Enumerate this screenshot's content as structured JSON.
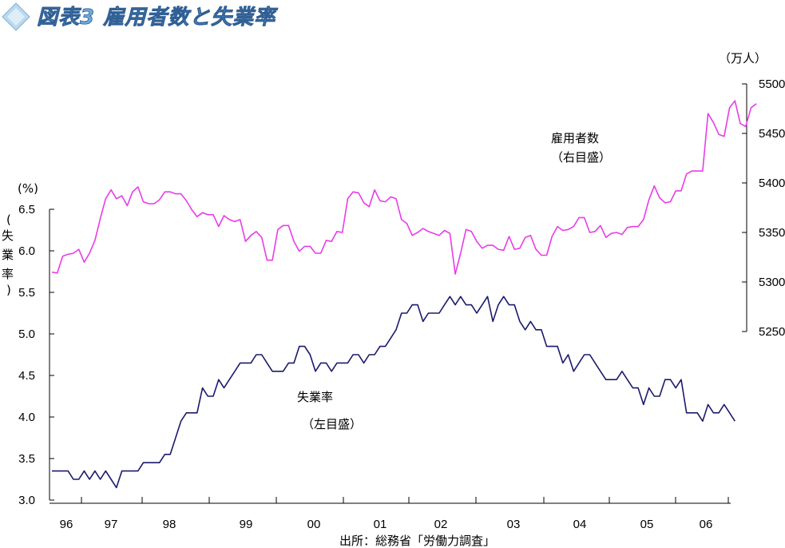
{
  "title": "図表3 雇用者数と失業率",
  "source": "出所：総務省「労働力調査」",
  "colors": {
    "unemployment": "#1a1a6e",
    "employees": "#e83ce8",
    "title_fill": "#6fa9d6"
  },
  "icon": "diamond-logo-icon",
  "chart_data": {
    "type": "line",
    "title": "図表3 雇用者数と失業率",
    "x_categories": [
      "96",
      "97",
      "98",
      "99",
      "00",
      "01",
      "02",
      "03",
      "04",
      "05",
      "06"
    ],
    "left_axis": {
      "unit": "(%)",
      "label": [
        "失",
        "業",
        "率"
      ],
      "ylim": [
        3.0,
        6.5
      ],
      "ticks": [
        "3.0",
        "3.5",
        "4.0",
        "4.5",
        "5.0",
        "5.5",
        "6.0",
        "6.5"
      ]
    },
    "right_axis": {
      "unit": "（万人）",
      "ylim": [
        5250,
        5500
      ],
      "ticks": [
        "5250",
        "5300",
        "5350",
        "5400",
        "5450",
        "5500"
      ]
    },
    "series": [
      {
        "name": "雇用者数",
        "axis": "right",
        "annotation": [
          "雇用者数",
          "（右目盛）"
        ],
        "x_start": 1996.0,
        "x_step": 0.0833,
        "values": [
          5310,
          5309,
          5326,
          5328,
          5329,
          5333,
          5320,
          5329,
          5342,
          5364,
          5384,
          5393,
          5384,
          5387,
          5377,
          5391,
          5396,
          5381,
          5379,
          5379,
          5383,
          5391,
          5391,
          5389,
          5389,
          5382,
          5373,
          5366,
          5370,
          5368,
          5368,
          5356,
          5367,
          5363,
          5361,
          5363,
          5341,
          5347,
          5351,
          5345,
          5322,
          5322,
          5353,
          5357,
          5357,
          5341,
          5331,
          5336,
          5336,
          5329,
          5329,
          5342,
          5341,
          5351,
          5350,
          5384,
          5391,
          5390,
          5380,
          5376,
          5393,
          5382,
          5381,
          5386,
          5384,
          5363,
          5359,
          5347,
          5350,
          5354,
          5351,
          5349,
          5347,
          5352,
          5349,
          5308,
          5329,
          5353,
          5351,
          5341,
          5334,
          5337,
          5337,
          5333,
          5332,
          5346,
          5333,
          5334,
          5345,
          5347,
          5333,
          5327,
          5327,
          5346,
          5356,
          5352,
          5353,
          5356,
          5365,
          5365,
          5350,
          5351,
          5357,
          5345,
          5349,
          5350,
          5348,
          5355,
          5356,
          5356,
          5363,
          5383,
          5397,
          5385,
          5380,
          5381,
          5392,
          5392,
          5409,
          5412,
          5412,
          5412,
          5470,
          5461,
          5449,
          5447,
          5476,
          5483,
          5460,
          5457,
          5476,
          5480
        ]
      },
      {
        "name": "失業率",
        "axis": "left",
        "annotation": [
          "失業率",
          "（左目盛）"
        ],
        "x_start": 1996.0,
        "x_step": 0.0833,
        "values": [
          3.35,
          3.35,
          3.35,
          3.35,
          3.25,
          3.25,
          3.35,
          3.25,
          3.35,
          3.25,
          3.35,
          3.25,
          3.15,
          3.35,
          3.35,
          3.35,
          3.35,
          3.45,
          3.45,
          3.45,
          3.45,
          3.55,
          3.55,
          3.75,
          3.95,
          4.05,
          4.05,
          4.05,
          4.35,
          4.25,
          4.25,
          4.45,
          4.35,
          4.45,
          4.55,
          4.65,
          4.65,
          4.65,
          4.75,
          4.75,
          4.65,
          4.55,
          4.55,
          4.55,
          4.65,
          4.65,
          4.85,
          4.85,
          4.75,
          4.55,
          4.65,
          4.65,
          4.55,
          4.65,
          4.65,
          4.65,
          4.75,
          4.75,
          4.65,
          4.75,
          4.75,
          4.85,
          4.85,
          4.95,
          5.05,
          5.25,
          5.25,
          5.35,
          5.35,
          5.15,
          5.25,
          5.25,
          5.25,
          5.35,
          5.45,
          5.35,
          5.45,
          5.35,
          5.35,
          5.25,
          5.35,
          5.45,
          5.15,
          5.35,
          5.45,
          5.35,
          5.35,
          5.15,
          5.05,
          5.15,
          5.05,
          5.05,
          4.85,
          4.85,
          4.85,
          4.65,
          4.75,
          4.55,
          4.65,
          4.75,
          4.75,
          4.65,
          4.55,
          4.45,
          4.45,
          4.45,
          4.55,
          4.45,
          4.35,
          4.35,
          4.15,
          4.35,
          4.25,
          4.25,
          4.45,
          4.45,
          4.35,
          4.45,
          4.05,
          4.05,
          4.05,
          3.95,
          4.15,
          4.05,
          4.05,
          4.15,
          4.05,
          3.95
        ]
      }
    ]
  }
}
